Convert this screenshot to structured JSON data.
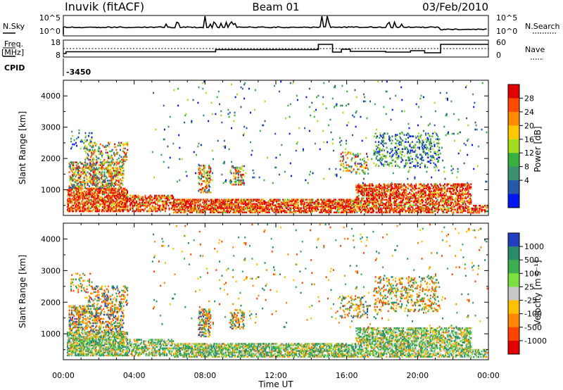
{
  "header": {
    "title": "Inuvik (fitACF)",
    "beam": "Beam 01",
    "date": "03/Feb/2010"
  },
  "panels": {
    "nsky": {
      "label": "N.Sky",
      "ticks": [
        "10^5",
        "10^0"
      ]
    },
    "nsearch": {
      "label": "N.Search",
      "ticks": [
        "10^5",
        "10^0"
      ]
    },
    "freq": {
      "label_line1": "Freq.",
      "label_line2": "[MHz]",
      "ticks": [
        "18",
        "8"
      ]
    },
    "nave": {
      "label": "Nave",
      "ticks": [
        "60",
        "0"
      ]
    },
    "cpid": {
      "label": "CPID",
      "value": "-3450"
    }
  },
  "chart_data": [
    {
      "type": "heatmap",
      "name": "power",
      "ylabel": "Slant Range [km]",
      "ylim": [
        180,
        4500
      ],
      "yticks": [
        "1000",
        "2000",
        "3000",
        "4000"
      ],
      "xlim": [
        0,
        24
      ],
      "xticks": [
        "00:00",
        "04:00",
        "08:00",
        "12:00",
        "16:00",
        "20:00",
        "00:00"
      ],
      "colorbar": {
        "label": "Power [dB]",
        "ticks": [
          "28",
          "24",
          "20",
          "16",
          "12",
          "8",
          "4"
        ],
        "colors": [
          "#e00000",
          "#ff4a00",
          "#ff8c00",
          "#ffc800",
          "#a4dc20",
          "#38b040",
          "#3c9070",
          "#2858a8",
          "#0018f0"
        ]
      }
    },
    {
      "type": "heatmap",
      "name": "velocity",
      "ylabel": "Slant Range [km]",
      "ylim": [
        180,
        4500
      ],
      "yticks": [
        "1000",
        "2000",
        "3000",
        "4000"
      ],
      "xlim": [
        0,
        24
      ],
      "xticks": [
        "00:00",
        "04:00",
        "08:00",
        "12:00",
        "16:00",
        "20:00",
        "00:00"
      ],
      "xlabel": "Time UT",
      "colorbar": {
        "label": "Velocity [m s⁻¹]",
        "ticks": [
          "1000",
          "500",
          "100",
          "25",
          "-25",
          "-100",
          "-500",
          "-1000"
        ],
        "colors": [
          "#2040c0",
          "#2c8a6c",
          "#3cb050",
          "#7ee040",
          "#c8c8c8",
          "#ffc000",
          "#ff8800",
          "#ff4400",
          "#e00000"
        ]
      }
    }
  ]
}
